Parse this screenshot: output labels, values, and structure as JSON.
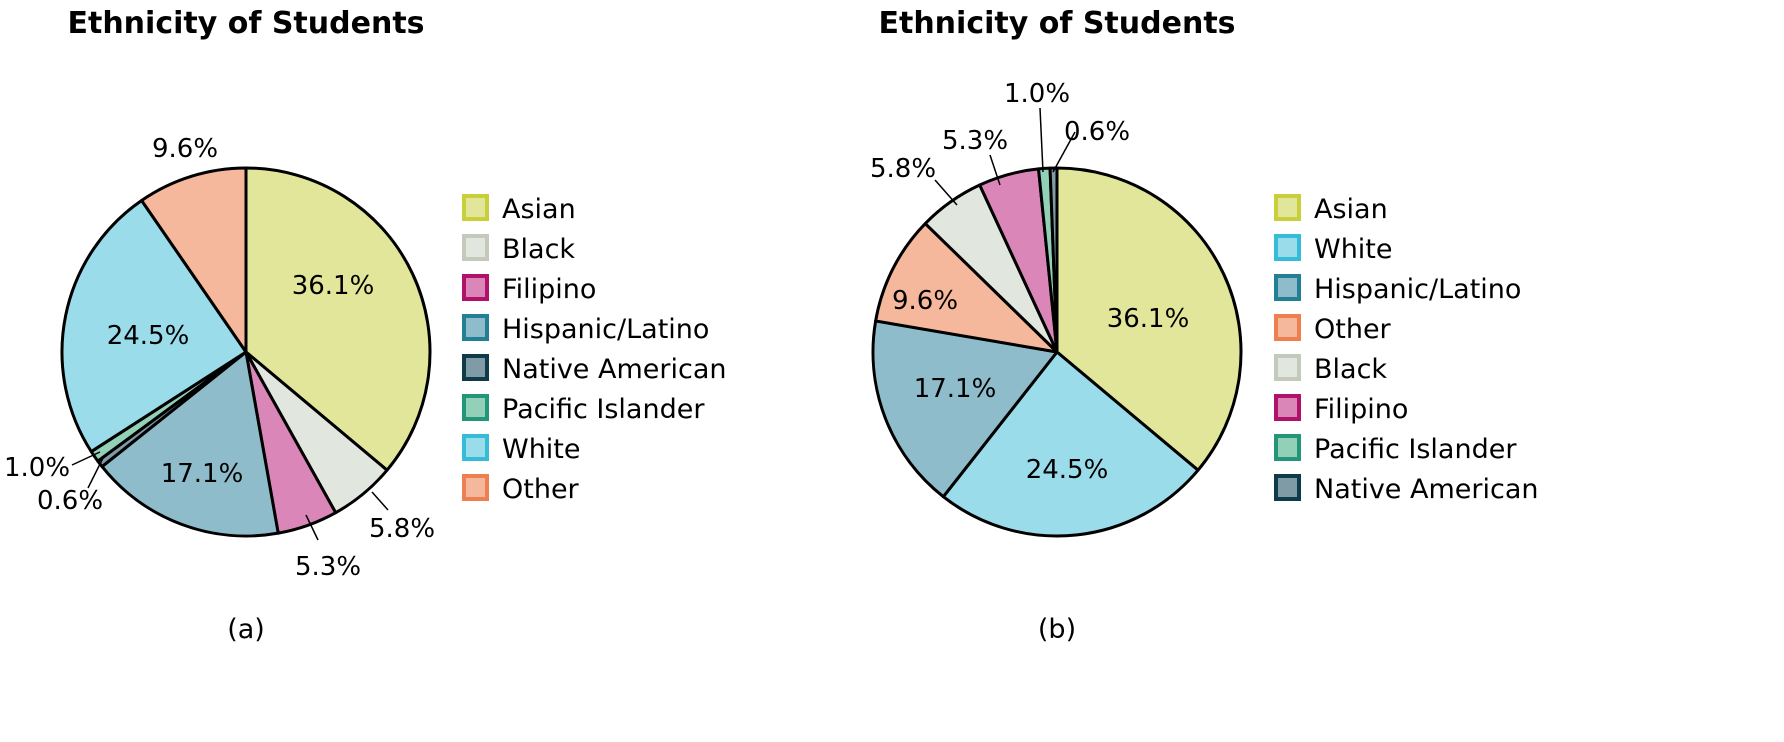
{
  "chart_data": [
    {
      "type": "pie",
      "title": "Ethnicity of Students",
      "caption": "(a)",
      "legend_position": "right",
      "categories": [
        "Asian",
        "Black",
        "Filipino",
        "Hispanic/Latino",
        "Native American",
        "Pacific Islander",
        "White",
        "Other"
      ],
      "values": [
        36.1,
        5.8,
        5.3,
        17.1,
        0.6,
        1.0,
        24.5,
        9.6
      ],
      "labels": [
        "36.1%",
        "5.8%",
        "5.3%",
        "17.1%",
        "0.6%",
        "1.0%",
        "24.5%",
        "9.6%"
      ]
    },
    {
      "type": "pie",
      "title": "Ethnicity of Students",
      "caption": "(b)",
      "legend_position": "right",
      "categories": [
        "Asian",
        "White",
        "Hispanic/Latino",
        "Other",
        "Black",
        "Filipino",
        "Pacific Islander",
        "Native American"
      ],
      "values": [
        36.1,
        24.5,
        17.1,
        9.6,
        5.8,
        5.3,
        1.0,
        0.6
      ],
      "labels": [
        "36.1%",
        "24.5%",
        "17.1%",
        "9.6%",
        "5.8%",
        "5.3%",
        "1.0%",
        "0.6%"
      ]
    }
  ],
  "colors": {
    "Asian": {
      "fill": "#e2e69a",
      "border": "#c8cf3a"
    },
    "Black": {
      "fill": "#e1e6df",
      "border": "#c3c9bb"
    },
    "Filipino": {
      "fill": "#da86b8",
      "border": "#b0126a"
    },
    "Hispanic/Latino": {
      "fill": "#8fbccb",
      "border": "#237f93"
    },
    "Native American": {
      "fill": "#7f9ba6",
      "border": "#0e3a4a"
    },
    "Pacific Islander": {
      "fill": "#93d0b8",
      "border": "#23967a"
    },
    "White": {
      "fill": "#9adcea",
      "border": "#35bcd8"
    },
    "Other": {
      "fill": "#f6b89c",
      "border": "#ee7f4f"
    }
  }
}
